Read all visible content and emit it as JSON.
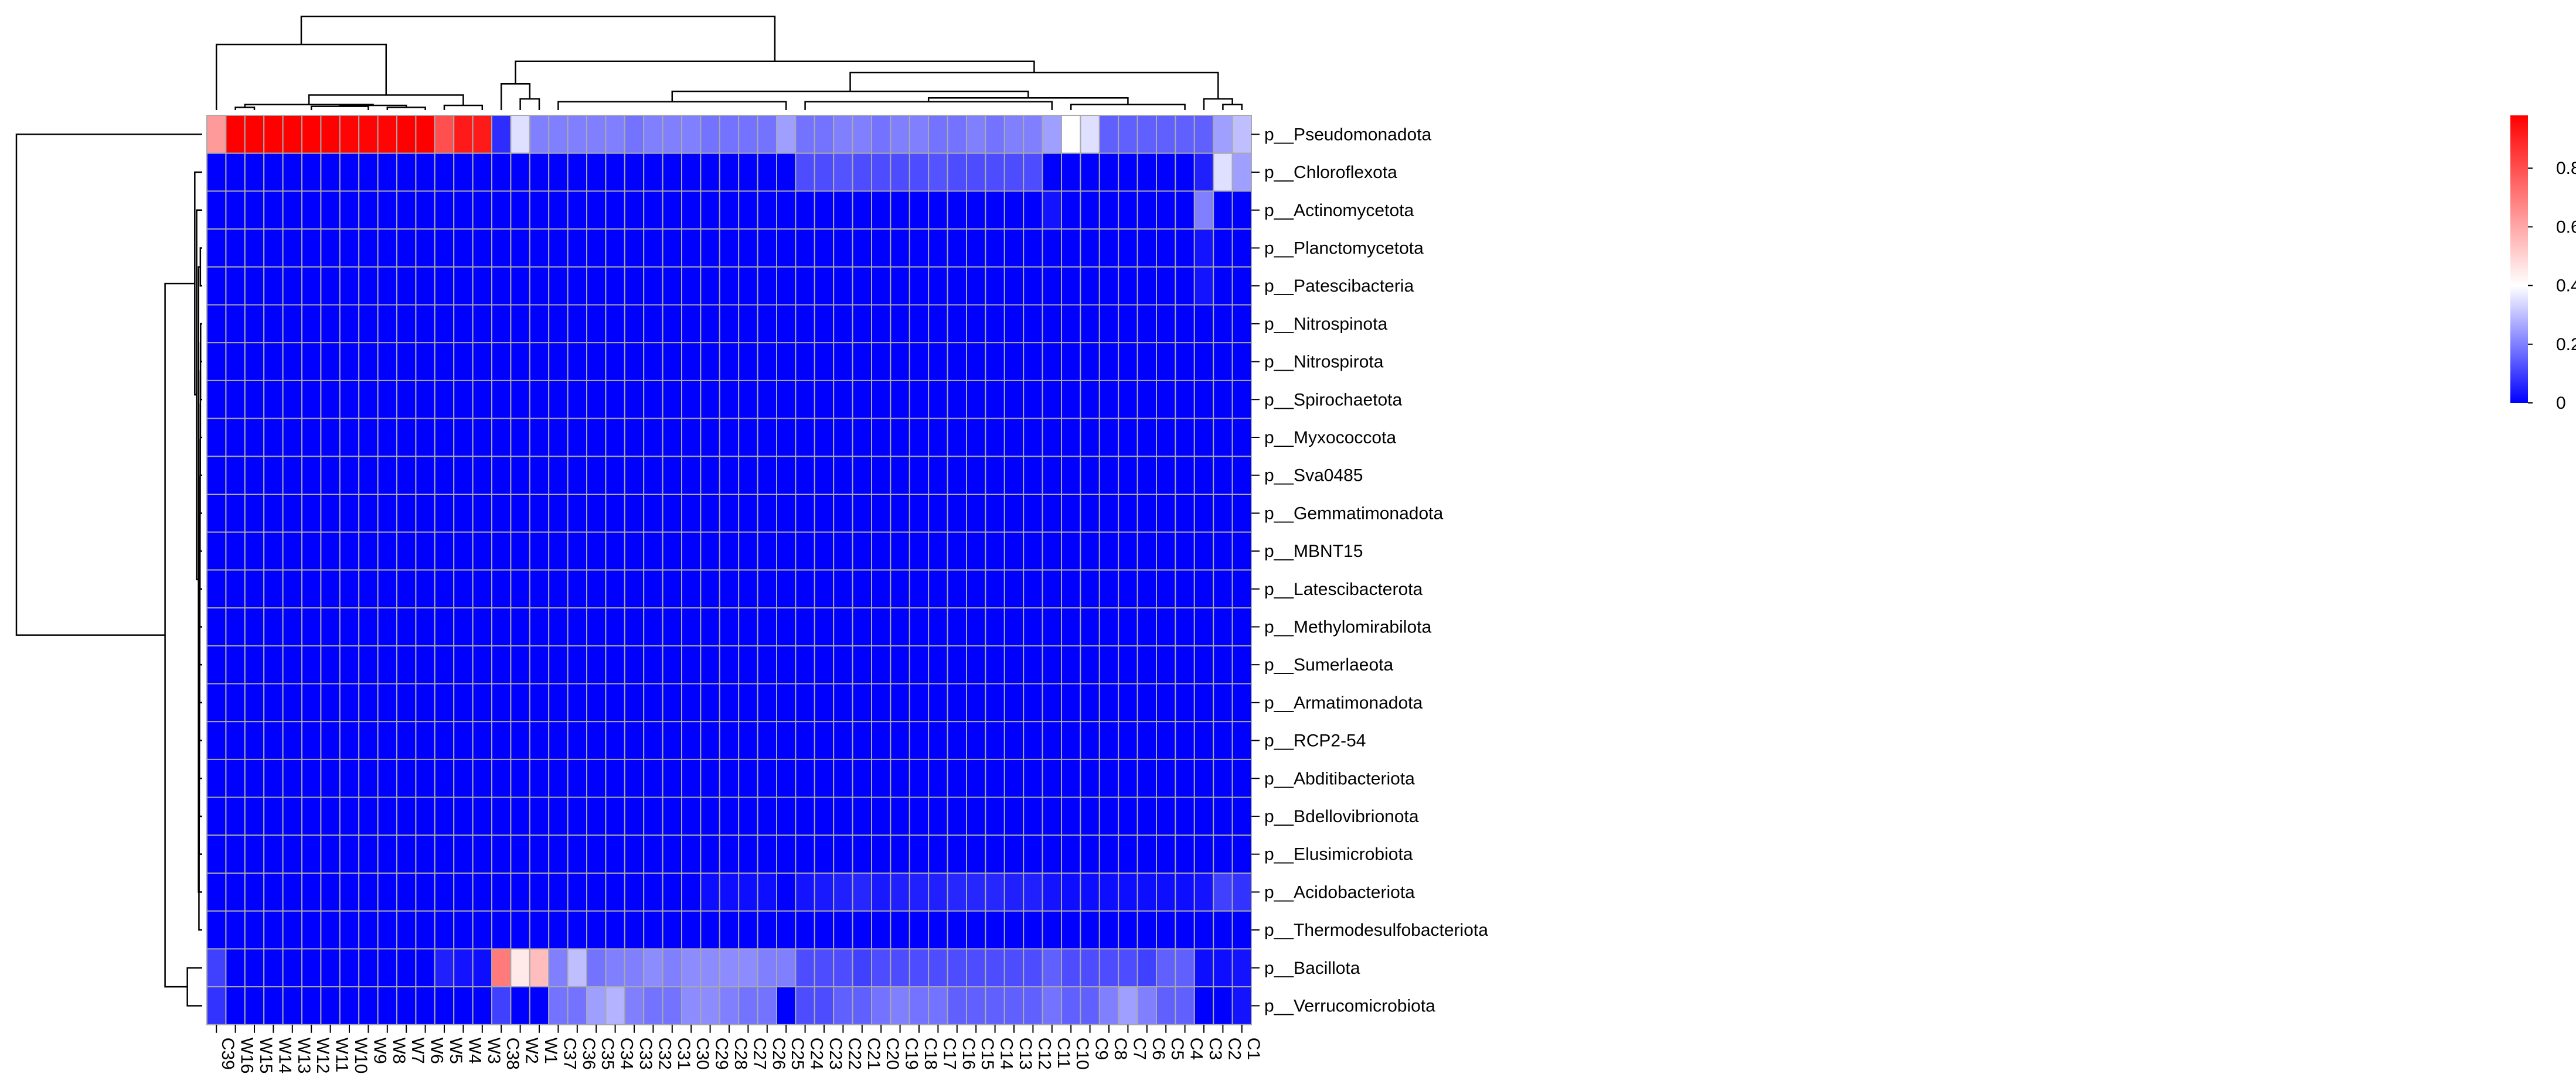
{
  "chart_data": {
    "type": "heatmap",
    "title": "",
    "xlabel": "",
    "ylabel": "",
    "columns": [
      "C39",
      "W16",
      "W15",
      "W14",
      "W13",
      "W12",
      "W11",
      "W10",
      "W9",
      "W8",
      "W7",
      "W6",
      "W5",
      "W4",
      "W3",
      "C38",
      "W2",
      "W1",
      "C37",
      "C36",
      "C35",
      "C34",
      "C33",
      "C32",
      "C31",
      "C30",
      "C29",
      "C28",
      "C27",
      "C26",
      "C25",
      "C24",
      "C23",
      "C22",
      "C21",
      "C20",
      "C19",
      "C18",
      "C17",
      "C16",
      "C15",
      "C14",
      "C13",
      "C12",
      "C11",
      "C10",
      "C9",
      "C8",
      "C7",
      "C6",
      "C5",
      "C4",
      "C3",
      "C2",
      "C1"
    ],
    "rows": [
      "p__Pseudomonadota",
      "p__Chloroflexota",
      "p__Actinomycetota",
      "p__Planctomycetota",
      "p__Patescibacteria",
      "p__Nitrospinota",
      "p__Nitrospirota",
      "p__Spirochaetota",
      "p__Myxococcota",
      "p__Sva0485",
      "p__Gemmatimonadota",
      "p__MBNT15",
      "p__Latescibacterota",
      "p__Methylomirabilota",
      "p__Sumerlaeota",
      "p__Armatimonadota",
      "p__RCP2-54",
      "p__Abditibacteriota",
      "p__Bdellovibrionota",
      "p__Elusimicrobiota",
      "p__Acidobacteriota",
      "p__Thermodesulfobacteriota",
      "p__Bacillota",
      "p__Verrucomicrobiota"
    ],
    "values": [
      [
        0.63,
        0.98,
        0.98,
        0.98,
        0.98,
        0.98,
        0.98,
        0.97,
        0.97,
        0.97,
        0.98,
        0.98,
        0.8,
        0.92,
        0.92,
        0.07,
        0.35,
        0.2,
        0.2,
        0.2,
        0.2,
        0.2,
        0.18,
        0.2,
        0.2,
        0.2,
        0.18,
        0.18,
        0.18,
        0.18,
        0.25,
        0.18,
        0.18,
        0.2,
        0.2,
        0.18,
        0.2,
        0.2,
        0.18,
        0.18,
        0.2,
        0.18,
        0.2,
        0.2,
        0.25,
        0.4,
        0.35,
        0.15,
        0.15,
        0.15,
        0.15,
        0.15,
        0.15,
        0.25,
        0.3
      ],
      [
        0,
        0,
        0,
        0,
        0,
        0,
        0,
        0,
        0,
        0,
        0,
        0,
        0,
        0,
        0,
        0,
        0,
        0,
        0,
        0,
        0,
        0,
        0,
        0,
        0,
        0,
        0,
        0,
        0,
        0,
        0,
        0.12,
        0.12,
        0.13,
        0.12,
        0.12,
        0.12,
        0.12,
        0.13,
        0.12,
        0.12,
        0.12,
        0.12,
        0.12,
        0,
        0,
        0,
        0,
        0,
        0,
        0,
        0,
        0.05,
        0.35,
        0.25
      ],
      [
        0,
        0,
        0,
        0,
        0,
        0,
        0,
        0,
        0,
        0,
        0,
        0,
        0,
        0,
        0,
        0,
        0,
        0,
        0,
        0,
        0,
        0,
        0,
        0,
        0,
        0,
        0,
        0,
        0,
        0,
        0,
        0,
        0,
        0,
        0,
        0,
        0,
        0,
        0,
        0,
        0,
        0,
        0,
        0,
        0.03,
        0,
        0,
        0,
        0,
        0,
        0,
        0,
        0.2,
        0,
        0
      ],
      [
        0,
        0,
        0,
        0,
        0,
        0,
        0,
        0,
        0,
        0,
        0,
        0,
        0,
        0,
        0,
        0,
        0,
        0,
        0,
        0,
        0,
        0,
        0,
        0,
        0,
        0,
        0,
        0,
        0,
        0,
        0,
        0,
        0,
        0,
        0,
        0,
        0,
        0,
        0,
        0,
        0,
        0,
        0,
        0,
        0,
        0,
        0,
        0,
        0,
        0,
        0,
        0,
        0.03,
        0,
        0
      ],
      [
        0,
        0,
        0,
        0,
        0,
        0,
        0,
        0,
        0,
        0,
        0,
        0,
        0,
        0,
        0,
        0,
        0,
        0,
        0,
        0,
        0,
        0,
        0,
        0,
        0,
        0,
        0,
        0,
        0,
        0,
        0,
        0,
        0,
        0,
        0,
        0,
        0,
        0,
        0,
        0,
        0,
        0,
        0,
        0,
        0,
        0,
        0,
        0,
        0,
        0,
        0,
        0,
        0.03,
        0,
        0
      ],
      [
        0,
        0,
        0,
        0,
        0,
        0,
        0,
        0,
        0,
        0,
        0,
        0,
        0,
        0,
        0,
        0,
        0,
        0,
        0,
        0,
        0,
        0,
        0,
        0,
        0,
        0,
        0,
        0,
        0,
        0,
        0,
        0,
        0,
        0,
        0,
        0,
        0,
        0,
        0,
        0,
        0,
        0,
        0,
        0,
        0,
        0,
        0,
        0,
        0,
        0,
        0,
        0,
        0,
        0,
        0
      ],
      [
        0,
        0,
        0,
        0,
        0,
        0,
        0,
        0,
        0,
        0,
        0,
        0,
        0,
        0,
        0,
        0,
        0,
        0,
        0,
        0,
        0,
        0,
        0,
        0,
        0,
        0,
        0,
        0,
        0,
        0,
        0,
        0,
        0,
        0,
        0,
        0,
        0,
        0,
        0,
        0,
        0,
        0,
        0,
        0,
        0,
        0,
        0,
        0,
        0,
        0,
        0,
        0,
        0,
        0,
        0
      ],
      [
        0,
        0,
        0,
        0,
        0,
        0,
        0,
        0,
        0,
        0,
        0,
        0,
        0,
        0,
        0,
        0,
        0,
        0,
        0,
        0,
        0,
        0,
        0,
        0,
        0,
        0,
        0,
        0,
        0,
        0,
        0,
        0,
        0,
        0,
        0,
        0,
        0,
        0,
        0,
        0,
        0,
        0,
        0,
        0,
        0,
        0,
        0,
        0,
        0,
        0,
        0,
        0,
        0,
        0,
        0
      ],
      [
        0,
        0,
        0,
        0,
        0,
        0,
        0,
        0,
        0,
        0,
        0,
        0,
        0,
        0,
        0,
        0,
        0,
        0,
        0,
        0,
        0,
        0,
        0,
        0,
        0,
        0,
        0,
        0,
        0,
        0,
        0,
        0,
        0,
        0,
        0,
        0,
        0,
        0,
        0,
        0,
        0,
        0,
        0,
        0,
        0,
        0,
        0,
        0,
        0,
        0,
        0,
        0,
        0,
        0,
        0
      ],
      [
        0,
        0,
        0,
        0,
        0,
        0,
        0,
        0,
        0,
        0,
        0,
        0,
        0,
        0,
        0,
        0,
        0,
        0,
        0,
        0,
        0,
        0,
        0,
        0,
        0,
        0,
        0,
        0,
        0,
        0,
        0,
        0,
        0,
        0,
        0,
        0,
        0,
        0,
        0,
        0,
        0,
        0,
        0,
        0,
        0,
        0,
        0,
        0,
        0,
        0,
        0,
        0,
        0,
        0,
        0
      ],
      [
        0,
        0,
        0,
        0,
        0,
        0,
        0,
        0,
        0,
        0,
        0,
        0,
        0,
        0,
        0,
        0,
        0,
        0,
        0,
        0,
        0,
        0,
        0,
        0,
        0,
        0,
        0,
        0,
        0,
        0,
        0,
        0,
        0,
        0,
        0,
        0,
        0,
        0,
        0,
        0,
        0,
        0,
        0,
        0,
        0,
        0,
        0,
        0,
        0,
        0,
        0,
        0,
        0,
        0,
        0
      ],
      [
        0,
        0,
        0,
        0,
        0,
        0,
        0,
        0,
        0,
        0,
        0,
        0,
        0,
        0,
        0,
        0,
        0,
        0,
        0,
        0,
        0,
        0,
        0,
        0,
        0,
        0,
        0,
        0,
        0,
        0,
        0,
        0,
        0,
        0,
        0,
        0,
        0,
        0,
        0,
        0,
        0,
        0,
        0,
        0,
        0,
        0,
        0,
        0,
        0,
        0,
        0,
        0,
        0,
        0,
        0
      ],
      [
        0,
        0,
        0,
        0,
        0,
        0,
        0,
        0,
        0,
        0,
        0,
        0,
        0,
        0,
        0,
        0,
        0,
        0,
        0,
        0,
        0,
        0,
        0,
        0,
        0,
        0,
        0,
        0,
        0,
        0,
        0,
        0,
        0,
        0,
        0,
        0,
        0,
        0,
        0,
        0,
        0,
        0,
        0,
        0,
        0,
        0,
        0,
        0,
        0,
        0,
        0,
        0,
        0,
        0,
        0
      ],
      [
        0,
        0,
        0,
        0,
        0,
        0,
        0,
        0,
        0,
        0,
        0,
        0,
        0,
        0,
        0,
        0,
        0,
        0,
        0,
        0,
        0,
        0,
        0,
        0,
        0,
        0,
        0,
        0,
        0,
        0,
        0,
        0,
        0,
        0,
        0,
        0,
        0,
        0,
        0,
        0,
        0,
        0,
        0,
        0,
        0,
        0,
        0,
        0,
        0,
        0,
        0,
        0,
        0,
        0,
        0
      ],
      [
        0,
        0,
        0,
        0,
        0,
        0,
        0,
        0,
        0,
        0,
        0,
        0,
        0,
        0,
        0,
        0,
        0,
        0,
        0,
        0,
        0,
        0,
        0,
        0,
        0,
        0,
        0,
        0,
        0,
        0,
        0,
        0,
        0,
        0,
        0,
        0,
        0,
        0,
        0,
        0,
        0,
        0,
        0,
        0,
        0,
        0,
        0,
        0,
        0,
        0,
        0,
        0,
        0,
        0,
        0
      ],
      [
        0,
        0,
        0,
        0,
        0,
        0,
        0,
        0,
        0,
        0,
        0,
        0,
        0,
        0,
        0,
        0,
        0,
        0,
        0,
        0,
        0,
        0,
        0,
        0,
        0,
        0,
        0,
        0,
        0,
        0,
        0,
        0,
        0,
        0,
        0,
        0,
        0,
        0,
        0,
        0,
        0,
        0,
        0,
        0,
        0,
        0,
        0,
        0,
        0,
        0,
        0,
        0,
        0,
        0,
        0
      ],
      [
        0,
        0,
        0,
        0,
        0,
        0,
        0,
        0,
        0,
        0,
        0,
        0,
        0,
        0,
        0,
        0,
        0,
        0,
        0,
        0,
        0,
        0,
        0,
        0,
        0,
        0,
        0,
        0,
        0,
        0,
        0,
        0,
        0,
        0,
        0,
        0,
        0,
        0,
        0,
        0,
        0,
        0,
        0,
        0,
        0,
        0,
        0,
        0,
        0,
        0,
        0,
        0,
        0,
        0,
        0
      ],
      [
        0,
        0,
        0,
        0,
        0,
        0,
        0,
        0,
        0,
        0,
        0,
        0,
        0,
        0,
        0,
        0,
        0,
        0,
        0,
        0,
        0,
        0,
        0,
        0,
        0,
        0,
        0,
        0,
        0,
        0,
        0,
        0,
        0,
        0,
        0,
        0,
        0,
        0,
        0,
        0,
        0,
        0,
        0,
        0,
        0,
        0,
        0,
        0,
        0,
        0,
        0,
        0,
        0,
        0,
        0
      ],
      [
        0,
        0,
        0,
        0,
        0,
        0,
        0,
        0,
        0,
        0,
        0,
        0,
        0,
        0,
        0,
        0,
        0,
        0,
        0,
        0,
        0,
        0,
        0,
        0,
        0,
        0,
        0,
        0,
        0,
        0,
        0,
        0,
        0,
        0,
        0,
        0,
        0,
        0,
        0,
        0,
        0,
        0,
        0,
        0,
        0,
        0,
        0,
        0,
        0,
        0,
        0,
        0,
        0,
        0,
        0
      ],
      [
        0,
        0,
        0,
        0,
        0,
        0,
        0,
        0,
        0,
        0,
        0,
        0,
        0,
        0,
        0,
        0,
        0,
        0,
        0,
        0,
        0,
        0,
        0,
        0,
        0,
        0,
        0,
        0,
        0,
        0,
        0,
        0,
        0,
        0,
        0,
        0,
        0,
        0,
        0,
        0,
        0,
        0,
        0,
        0,
        0,
        0,
        0,
        0,
        0,
        0,
        0,
        0,
        0,
        0,
        0
      ],
      [
        0,
        0,
        0,
        0,
        0,
        0,
        0,
        0,
        0,
        0,
        0,
        0,
        0,
        0,
        0,
        0,
        0,
        0,
        0,
        0,
        0,
        0,
        0,
        0,
        0,
        0,
        0.02,
        0.02,
        0.02,
        0.02,
        0,
        0.03,
        0.04,
        0.05,
        0.06,
        0.04,
        0.05,
        0.05,
        0.05,
        0.06,
        0.06,
        0.06,
        0.05,
        0.05,
        0.03,
        0.02,
        0.02,
        0.02,
        0.02,
        0.02,
        0.02,
        0.02,
        0.03,
        0.1,
        0.08
      ],
      [
        0,
        0,
        0,
        0,
        0,
        0,
        0,
        0,
        0,
        0,
        0,
        0,
        0,
        0,
        0,
        0,
        0,
        0,
        0,
        0,
        0,
        0,
        0,
        0,
        0,
        0,
        0,
        0,
        0,
        0,
        0,
        0,
        0,
        0,
        0,
        0,
        0,
        0,
        0,
        0,
        0,
        0,
        0,
        0,
        0,
        0,
        0,
        0,
        0,
        0,
        0,
        0,
        0,
        0,
        0
      ],
      [
        0.1,
        0,
        0,
        0,
        0,
        0,
        0,
        0,
        0,
        0,
        0,
        0,
        0.05,
        0.03,
        0.02,
        0.7,
        0.45,
        0.55,
        0.2,
        0.3,
        0.18,
        0.2,
        0.2,
        0.22,
        0.2,
        0.22,
        0.22,
        0.22,
        0.22,
        0.2,
        0.2,
        0.12,
        0.12,
        0.12,
        0.1,
        0.12,
        0.12,
        0.12,
        0.12,
        0.12,
        0.12,
        0.12,
        0.12,
        0.12,
        0.15,
        0.12,
        0.12,
        0.12,
        0.12,
        0.1,
        0.15,
        0.15,
        0.02,
        0.02,
        0.03
      ],
      [
        0.08,
        0,
        0,
        0,
        0,
        0,
        0,
        0,
        0,
        0,
        0,
        0,
        0,
        0,
        0,
        0.1,
        0,
        0,
        0.18,
        0.18,
        0.25,
        0.28,
        0.2,
        0.18,
        0.18,
        0.22,
        0.22,
        0.2,
        0.18,
        0.18,
        0,
        0.12,
        0.12,
        0.15,
        0.15,
        0.18,
        0.2,
        0.18,
        0.18,
        0.15,
        0.15,
        0.15,
        0.15,
        0.15,
        0.18,
        0.15,
        0.15,
        0.2,
        0.25,
        0.2,
        0.15,
        0.15,
        0,
        0,
        0.03
      ]
    ],
    "colorbar": {
      "ticks": [
        "0",
        "0.2",
        "0.4",
        "0.6",
        "0.8"
      ],
      "range": [
        0,
        0.98
      ]
    },
    "colors": {
      "low": "#0000ff",
      "mid": "#ffffff",
      "high": "#ff0000",
      "cell_border": "#a9a9a9",
      "line": "#000000"
    },
    "grid": true,
    "legend_placement": "right",
    "dendrograms": {
      "columns": "top",
      "rows": "left"
    }
  }
}
